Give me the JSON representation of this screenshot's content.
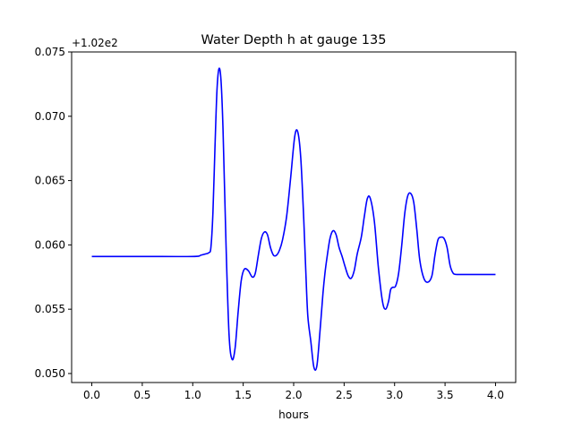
{
  "chart_data": {
    "type": "line",
    "title": "Water Depth h at gauge 135",
    "xlabel": "hours",
    "ylabel": "",
    "y_offset_label": "+1.02e2",
    "xlim": [
      -0.2,
      4.2
    ],
    "ylim": [
      0.0493,
      0.075
    ],
    "x_ticks": [
      0.0,
      0.5,
      1.0,
      1.5,
      2.0,
      2.5,
      3.0,
      3.5,
      4.0
    ],
    "x_tick_labels": [
      "0.0",
      "0.5",
      "1.0",
      "1.5",
      "2.0",
      "2.5",
      "3.0",
      "3.5",
      "4.0"
    ],
    "y_ticks": [
      0.05,
      0.055,
      0.06,
      0.065,
      0.07,
      0.075
    ],
    "y_tick_labels": [
      "0.050",
      "0.055",
      "0.060",
      "0.065",
      "0.070",
      "0.075"
    ],
    "grid": false,
    "series": [
      {
        "color": "#0000ff",
        "x": [
          0.0,
          0.5,
          1.0,
          1.08,
          1.13,
          1.16,
          1.18,
          1.2,
          1.22,
          1.24,
          1.26,
          1.28,
          1.3,
          1.33,
          1.36,
          1.39,
          1.42,
          1.45,
          1.48,
          1.51,
          1.55,
          1.59,
          1.62,
          1.65,
          1.68,
          1.71,
          1.74,
          1.77,
          1.8,
          1.83,
          1.86,
          1.89,
          1.93,
          1.97,
          2.01,
          2.04,
          2.07,
          2.1,
          2.12,
          2.14,
          2.17,
          2.2,
          2.23,
          2.26,
          2.29,
          2.31,
          2.33,
          2.36,
          2.39,
          2.42,
          2.45,
          2.48,
          2.51,
          2.54,
          2.57,
          2.6,
          2.63,
          2.67,
          2.7,
          2.73,
          2.76,
          2.8,
          2.84,
          2.88,
          2.91,
          2.94,
          2.96,
          2.98,
          3.01,
          3.04,
          3.07,
          3.1,
          3.13,
          3.16,
          3.19,
          3.22,
          3.25,
          3.29,
          3.33,
          3.37,
          3.4,
          3.43,
          3.46,
          3.49,
          3.52,
          3.55,
          3.58,
          3.61,
          3.64,
          3.67,
          3.7,
          3.73,
          3.76,
          3.79,
          3.82,
          3.85,
          3.88,
          3.91,
          3.94,
          3.97,
          4.0
        ],
        "y": [
          0.0591,
          0.0591,
          0.0591,
          0.0592,
          0.0593,
          0.0594,
          0.0598,
          0.0625,
          0.0675,
          0.072,
          0.0737,
          0.0728,
          0.069,
          0.06,
          0.053,
          0.0511,
          0.052,
          0.0548,
          0.0572,
          0.0581,
          0.058,
          0.0575,
          0.0578,
          0.0592,
          0.0605,
          0.061,
          0.0608,
          0.0598,
          0.0592,
          0.0592,
          0.0596,
          0.0604,
          0.0622,
          0.0652,
          0.0684,
          0.0688,
          0.0668,
          0.062,
          0.058,
          0.0545,
          0.0525,
          0.0505,
          0.0506,
          0.0532,
          0.0562,
          0.0578,
          0.059,
          0.0605,
          0.0611,
          0.0608,
          0.0598,
          0.0591,
          0.0583,
          0.0576,
          0.0574,
          0.058,
          0.0593,
          0.0606,
          0.0622,
          0.0636,
          0.0636,
          0.0618,
          0.0582,
          0.0556,
          0.055,
          0.0556,
          0.0565,
          0.0567,
          0.0568,
          0.0578,
          0.0599,
          0.0624,
          0.0638,
          0.064,
          0.0633,
          0.0612,
          0.0588,
          0.0574,
          0.0571,
          0.0576,
          0.0592,
          0.0604,
          0.0606,
          0.0605,
          0.0598,
          0.0584,
          0.0578,
          0.0577,
          0.0577,
          0.0577,
          0.0577,
          0.0577,
          0.0577,
          0.0577,
          0.0577,
          0.0577,
          0.0577,
          0.0577,
          0.0577,
          0.0577,
          0.0577
        ]
      }
    ]
  }
}
